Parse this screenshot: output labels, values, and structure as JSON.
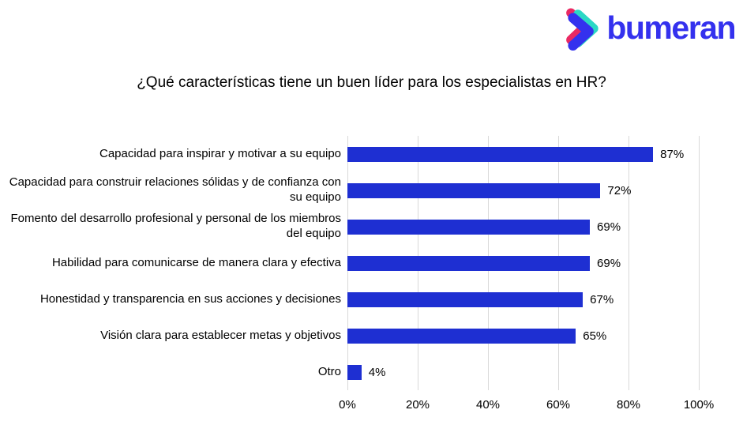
{
  "logo": {
    "text": "bumeran",
    "colors": {
      "blue": "#3431ee",
      "teal": "#2bd8c5",
      "pink": "#ea2963"
    }
  },
  "title": "¿Qué características tiene un buen líder para los especialistas en HR?",
  "chart_data": {
    "type": "bar",
    "orientation": "horizontal",
    "title": "¿Qué características tiene un buen líder para los especialistas en HR?",
    "categories": [
      "Capacidad para inspirar y motivar a su equipo",
      "Capacidad para construir relaciones sólidas y de confianza con su equipo",
      "Fomento del desarrollo profesional y personal de los miembros del equipo",
      "Habilidad para comunicarse de manera clara y efectiva",
      "Honestidad y transparencia en sus acciones y decisiones",
      "Visión clara para establecer metas y objetivos",
      "Otro"
    ],
    "values": [
      87,
      72,
      69,
      69,
      67,
      65,
      4
    ],
    "value_labels": [
      "87%",
      "72%",
      "69%",
      "69%",
      "67%",
      "65%",
      "4%"
    ],
    "x_ticks": [
      "0%",
      "20%",
      "40%",
      "60%",
      "80%",
      "100%"
    ],
    "xlim": [
      0,
      100
    ],
    "xlabel": "",
    "ylabel": "",
    "grid": true,
    "legend": false,
    "bar_color": "#1e2fd2",
    "gridline_color": "#d9d9d9"
  }
}
